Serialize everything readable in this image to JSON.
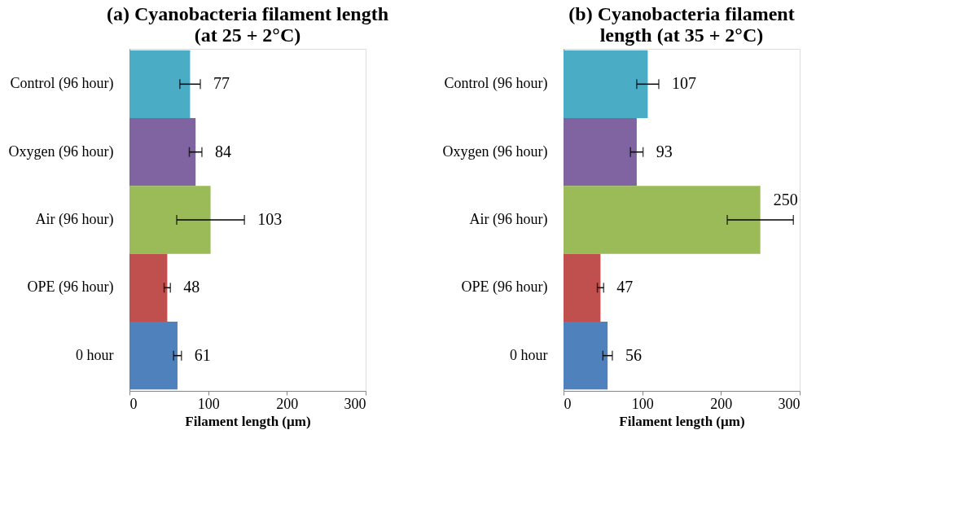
{
  "chart_data": [
    {
      "type": "bar",
      "orientation": "horizontal",
      "title": "(a) Cyanobacteria filament length\n(at 25 + 2°C)",
      "xlabel": "Filament length (µm)",
      "categories": [
        "Control  (96 hour)",
        "Oxygen  (96 hour)",
        "Air  (96 hour)",
        "OPE  (96 hour)",
        "0 hour"
      ],
      "values": [
        77,
        84,
        103,
        48,
        61
      ],
      "errors": [
        13,
        8,
        43,
        4,
        5
      ],
      "colors": [
        "#4bacc6",
        "#8064a2",
        "#9bbb59",
        "#c0504d",
        "#4f81bd"
      ],
      "xlim": [
        0,
        300
      ],
      "xticks": [
        0,
        100,
        200,
        300
      ],
      "grid": false,
      "data_labels": true
    },
    {
      "type": "bar",
      "orientation": "horizontal",
      "title": "(b) Cyanobacteria filament\nlength (at 35 + 2°C)",
      "xlabel": "Filament length (µm)",
      "categories": [
        "Control  (96 hour)",
        "Oxygen  (96 hour)",
        "Air  (96 hour)",
        "OPE  (96 hour)",
        "0 hour"
      ],
      "values": [
        107,
        93,
        250,
        47,
        56
      ],
      "errors": [
        14,
        8,
        42,
        4,
        6
      ],
      "colors": [
        "#4bacc6",
        "#8064a2",
        "#9bbb59",
        "#c0504d",
        "#4f81bd"
      ],
      "xlim": [
        0,
        300
      ],
      "xticks": [
        0,
        100,
        200,
        300
      ],
      "grid": false,
      "data_labels": true
    }
  ]
}
